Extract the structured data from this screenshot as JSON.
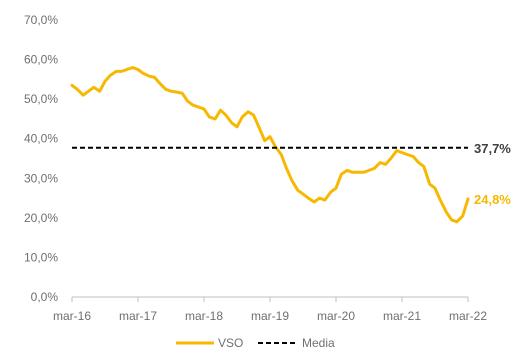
{
  "chart_data": {
    "type": "line",
    "title": "",
    "xlabel": "",
    "ylabel": "",
    "ylim": [
      0,
      70
    ],
    "y_ticks": [
      "0,0%",
      "10,0%",
      "20,0%",
      "30,0%",
      "40,0%",
      "50,0%",
      "60,0%",
      "70,0%"
    ],
    "x_ticks": [
      "mar-16",
      "mar-17",
      "mar-18",
      "mar-19",
      "mar-20",
      "mar-21",
      "mar-22"
    ],
    "grid": false,
    "legend_placement": "bottom-center",
    "series": [
      {
        "name": "VSO",
        "color": "#f6b800",
        "style": "solid",
        "end_label": "24,8%",
        "x": [
          0,
          0.08,
          0.17,
          0.25,
          0.33,
          0.42,
          0.5,
          0.58,
          0.67,
          0.75,
          0.83,
          0.92,
          1.0,
          1.08,
          1.17,
          1.25,
          1.33,
          1.42,
          1.5,
          1.58,
          1.67,
          1.75,
          1.83,
          1.92,
          2.0,
          2.08,
          2.17,
          2.25,
          2.33,
          2.42,
          2.5,
          2.58,
          2.67,
          2.75,
          2.83,
          2.92,
          3.0,
          3.08,
          3.17,
          3.25,
          3.33,
          3.42,
          3.5,
          3.58,
          3.67,
          3.75,
          3.83,
          3.92,
          4.0,
          4.08,
          4.17,
          4.25,
          4.33,
          4.42,
          4.5,
          4.58,
          4.67,
          4.75,
          4.83,
          4.92,
          5.0,
          5.08,
          5.17,
          5.25,
          5.33,
          5.42,
          5.5,
          5.58,
          5.67,
          5.75,
          5.83,
          5.92,
          6.0
        ],
        "y": [
          53.5,
          52.5,
          51.0,
          52.0,
          53.0,
          52.0,
          54.5,
          56.0,
          57.0,
          57.0,
          57.5,
          58.0,
          57.5,
          56.5,
          55.8,
          55.5,
          54.0,
          52.5,
          52.0,
          51.8,
          51.5,
          49.5,
          48.5,
          48.0,
          47.5,
          45.5,
          45.0,
          47.2,
          46.0,
          44.0,
          43.0,
          45.5,
          46.8,
          46.0,
          43.0,
          39.5,
          40.5,
          38.0,
          36.0,
          32.5,
          29.5,
          27.0,
          26.0,
          25.0,
          24.0,
          25.0,
          24.5,
          26.5,
          27.5,
          31.0,
          32.0,
          31.5,
          31.5,
          31.5,
          32.0,
          32.5,
          34.0,
          33.5,
          35.0,
          37.0,
          36.5,
          36.0,
          35.5,
          34.0,
          33.0,
          28.5,
          27.5,
          24.5,
          21.5,
          19.5,
          19.0,
          20.5,
          24.8
        ]
      },
      {
        "name": "Media",
        "color": "#000000",
        "style": "dashed",
        "end_label": "37,7%",
        "x": [
          0,
          6.0
        ],
        "y": [
          37.7,
          37.7
        ]
      }
    ]
  }
}
